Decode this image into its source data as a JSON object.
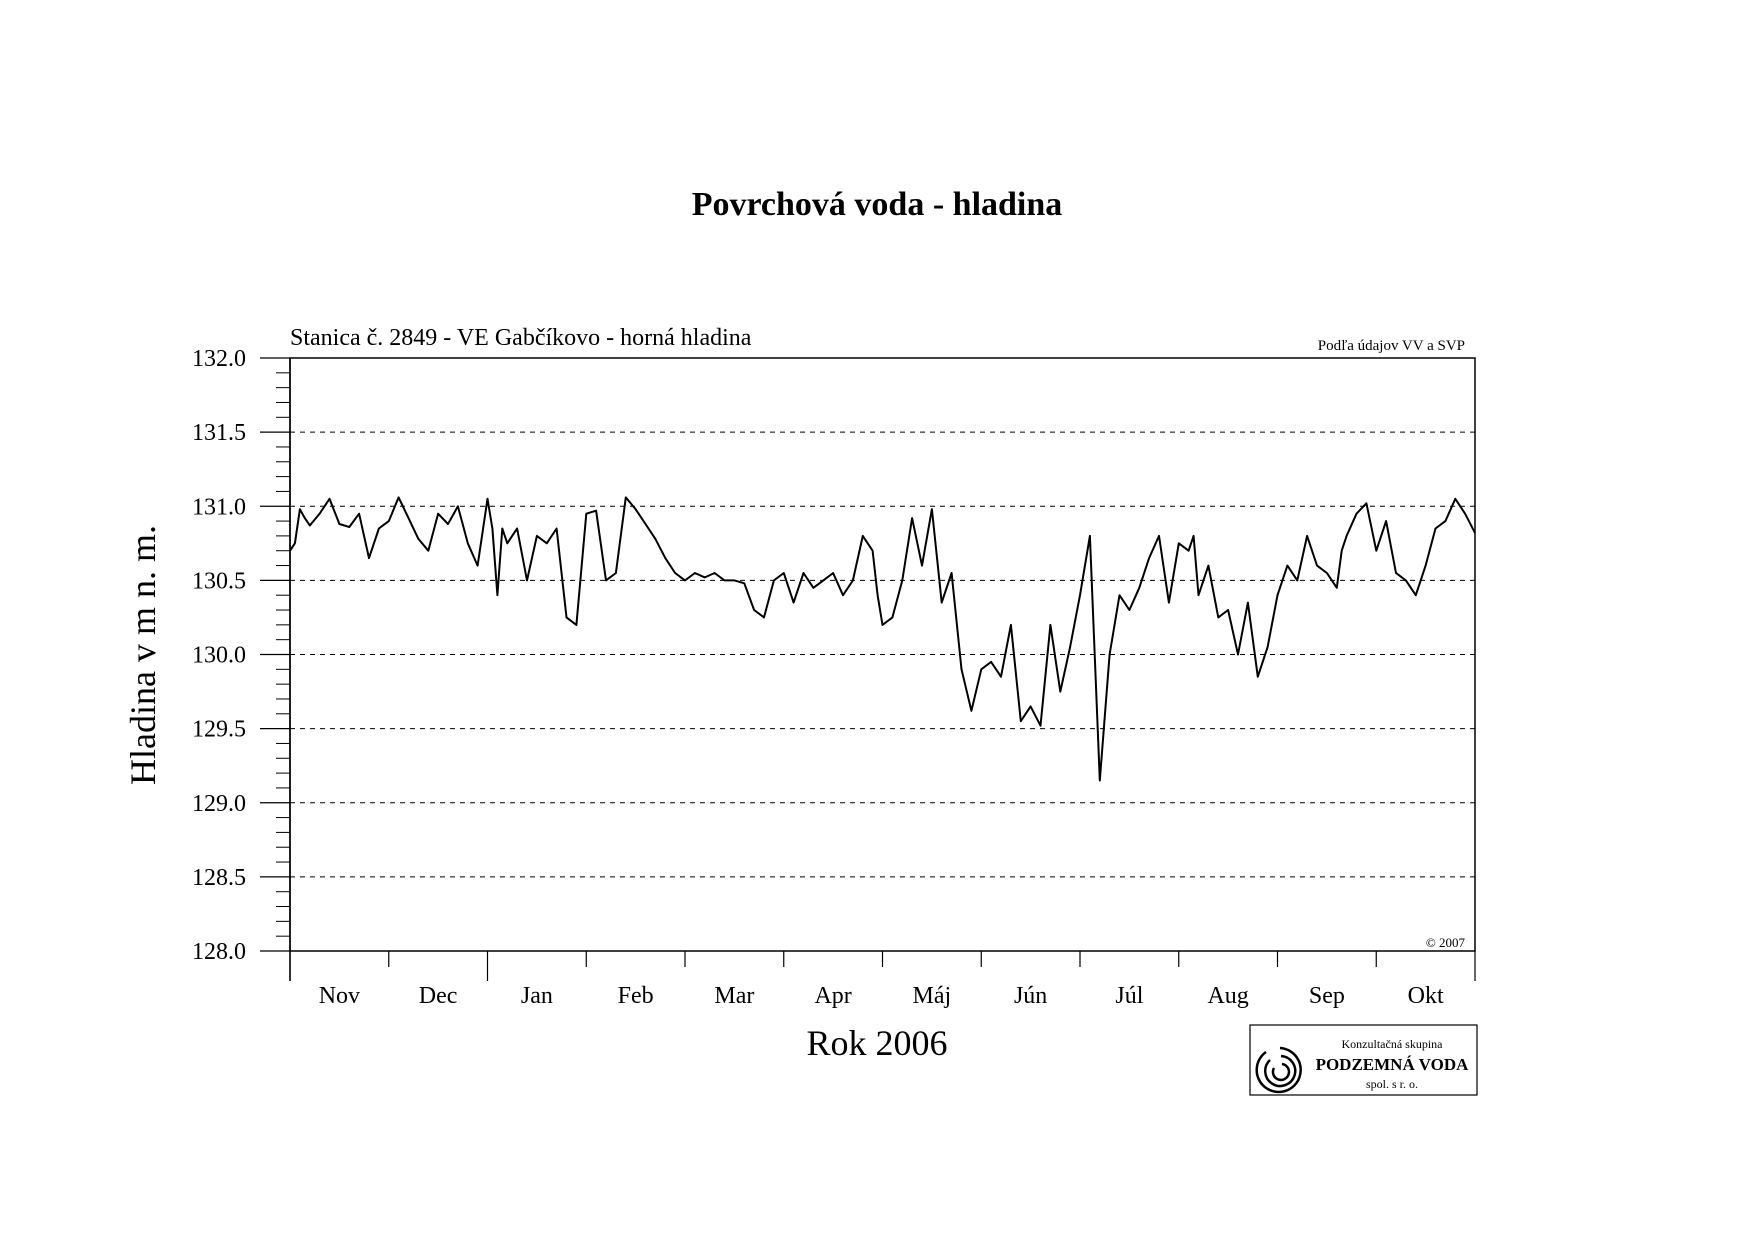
{
  "page": {
    "title": "Povrchová voda - hladina",
    "logo": {
      "line1": "Konzultačná skupina",
      "line2": "PODZEMNÁ VODA",
      "line3": "spol. s r. o."
    }
  },
  "chart_data": {
    "type": "line",
    "title": "Povrchová voda - hladina",
    "subtitle": "Stanica č. 2849 - VE Gabčíkovo - horná hladina",
    "source_note": "Podľa údajov VV a SVP",
    "copyright": "© 2007",
    "xlabel": "Rok 2006",
    "ylabel": "Hladina v m n. m.",
    "ylim": [
      128.0,
      132.0
    ],
    "yticks": [
      "128.0",
      "128.5",
      "129.0",
      "129.5",
      "130.0",
      "130.5",
      "131.0",
      "131.5",
      "132.0"
    ],
    "ytick_values": [
      128.0,
      128.5,
      129.0,
      129.5,
      130.0,
      130.5,
      131.0,
      131.5,
      132.0
    ],
    "y_minor_step": 0.1,
    "grid": "horizontal dashed",
    "months": [
      "Nov",
      "Dec",
      "Jan",
      "Feb",
      "Mar",
      "Apr",
      "Máj",
      "Jún",
      "Júl",
      "Aug",
      "Sep",
      "Okt"
    ],
    "month_days": [
      30,
      31,
      31,
      28,
      31,
      30,
      31,
      30,
      31,
      31,
      30,
      31
    ],
    "line_color": "#000000",
    "series": [
      {
        "x_unit": "month index (0 = start of Nov)",
        "x": [
          0,
          0.05,
          0.1,
          0.15,
          0.2,
          0.3,
          0.4,
          0.5,
          0.6,
          0.7,
          0.8,
          0.9,
          1.0,
          1.1,
          1.2,
          1.3,
          1.4,
          1.5,
          1.6,
          1.7,
          1.8,
          1.9,
          2.0,
          2.05,
          2.1,
          2.15,
          2.2,
          2.3,
          2.4,
          2.5,
          2.6,
          2.7,
          2.8,
          2.9,
          3.0,
          3.1,
          3.2,
          3.3,
          3.4,
          3.5,
          3.6,
          3.7,
          3.8,
          3.9,
          4.0,
          4.1,
          4.2,
          4.3,
          4.4,
          4.5,
          4.6,
          4.7,
          4.8,
          4.9,
          5.0,
          5.1,
          5.2,
          5.3,
          5.4,
          5.5,
          5.6,
          5.7,
          5.8,
          5.9,
          5.95,
          6.0,
          6.1,
          6.2,
          6.3,
          6.4,
          6.5,
          6.6,
          6.7,
          6.8,
          6.9,
          7.0,
          7.1,
          7.2,
          7.3,
          7.4,
          7.5,
          7.6,
          7.7,
          7.8,
          7.9,
          8.0,
          8.1,
          8.2,
          8.3,
          8.4,
          8.5,
          8.6,
          8.7,
          8.8,
          8.9,
          9.0,
          9.1,
          9.15,
          9.2,
          9.3,
          9.4,
          9.5,
          9.6,
          9.7,
          9.8,
          9.9,
          10.0,
          10.1,
          10.2,
          10.3,
          10.4,
          10.5,
          10.6,
          10.65,
          10.7,
          10.8,
          10.9,
          11.0,
          11.1,
          11.2,
          11.3,
          11.4,
          11.5,
          11.6,
          11.7,
          11.8,
          11.9,
          12.0
        ],
        "y": [
          130.7,
          130.75,
          130.98,
          130.92,
          130.87,
          130.95,
          131.05,
          130.88,
          130.86,
          130.95,
          130.65,
          130.85,
          130.9,
          131.06,
          130.92,
          130.78,
          130.7,
          130.95,
          130.88,
          131.0,
          130.75,
          130.6,
          131.05,
          130.85,
          130.4,
          130.85,
          130.75,
          130.85,
          130.5,
          130.8,
          130.75,
          130.85,
          130.25,
          130.2,
          130.95,
          130.97,
          130.5,
          130.55,
          131.06,
          130.98,
          130.88,
          130.78,
          130.65,
          130.55,
          130.5,
          130.55,
          130.52,
          130.55,
          130.5,
          130.5,
          130.48,
          130.3,
          130.25,
          130.5,
          130.55,
          130.35,
          130.55,
          130.45,
          130.5,
          130.55,
          130.4,
          130.5,
          130.8,
          130.7,
          130.4,
          130.2,
          130.25,
          130.5,
          130.92,
          130.6,
          130.98,
          130.35,
          130.55,
          129.9,
          129.62,
          129.9,
          129.95,
          129.85,
          130.2,
          129.55,
          129.65,
          129.52,
          130.2,
          129.75,
          130.05,
          130.4,
          130.8,
          129.15,
          130.0,
          130.4,
          130.3,
          130.45,
          130.65,
          130.8,
          130.35,
          130.75,
          130.7,
          130.8,
          130.4,
          130.6,
          130.25,
          130.3,
          130.0,
          130.35,
          129.85,
          130.05,
          130.4,
          130.6,
          130.5,
          130.8,
          130.6,
          130.55,
          130.45,
          130.7,
          130.8,
          130.95,
          131.02,
          130.7,
          130.9,
          130.55,
          130.5,
          130.4,
          130.6,
          130.85,
          130.9,
          131.05,
          130.95,
          130.82
        ]
      }
    ]
  }
}
